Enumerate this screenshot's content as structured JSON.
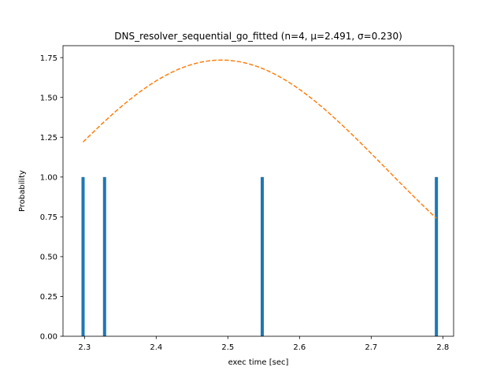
{
  "chart_data": {
    "type": "bar",
    "title": "DNS_resolver_sequential_go_fitted (n=4, μ=2.491, σ=0.230)",
    "xlabel": "exec time [sec]",
    "ylabel": "Probability",
    "xlim": [
      2.27,
      2.815
    ],
    "ylim": [
      0,
      1.825
    ],
    "x_ticks": [
      2.3,
      2.4,
      2.5,
      2.6,
      2.7,
      2.8
    ],
    "x_tick_labels": [
      "2.3",
      "2.4",
      "2.5",
      "2.6",
      "2.7",
      "2.8"
    ],
    "y_ticks": [
      0,
      0.25,
      0.5,
      0.75,
      1.0,
      1.25,
      1.5,
      1.75
    ],
    "y_tick_labels": [
      "0.00",
      "0.25",
      "0.50",
      "0.75",
      "1.00",
      "1.25",
      "1.50",
      "1.75"
    ],
    "grid": false,
    "series": [
      {
        "kind": "bar",
        "color": "#1f77b4",
        "bars": [
          {
            "x": 2.298,
            "value": 1.0
          },
          {
            "x": 2.328,
            "value": 1.0
          },
          {
            "x": 2.548,
            "value": 1.0
          },
          {
            "x": 2.791,
            "value": 1.0
          }
        ]
      },
      {
        "kind": "line",
        "style": "dashed",
        "color": "#ff7f0e",
        "function": "normal_pdf",
        "mu": 2.491,
        "sigma": 0.23,
        "x_range": [
          2.298,
          2.791
        ]
      }
    ]
  }
}
